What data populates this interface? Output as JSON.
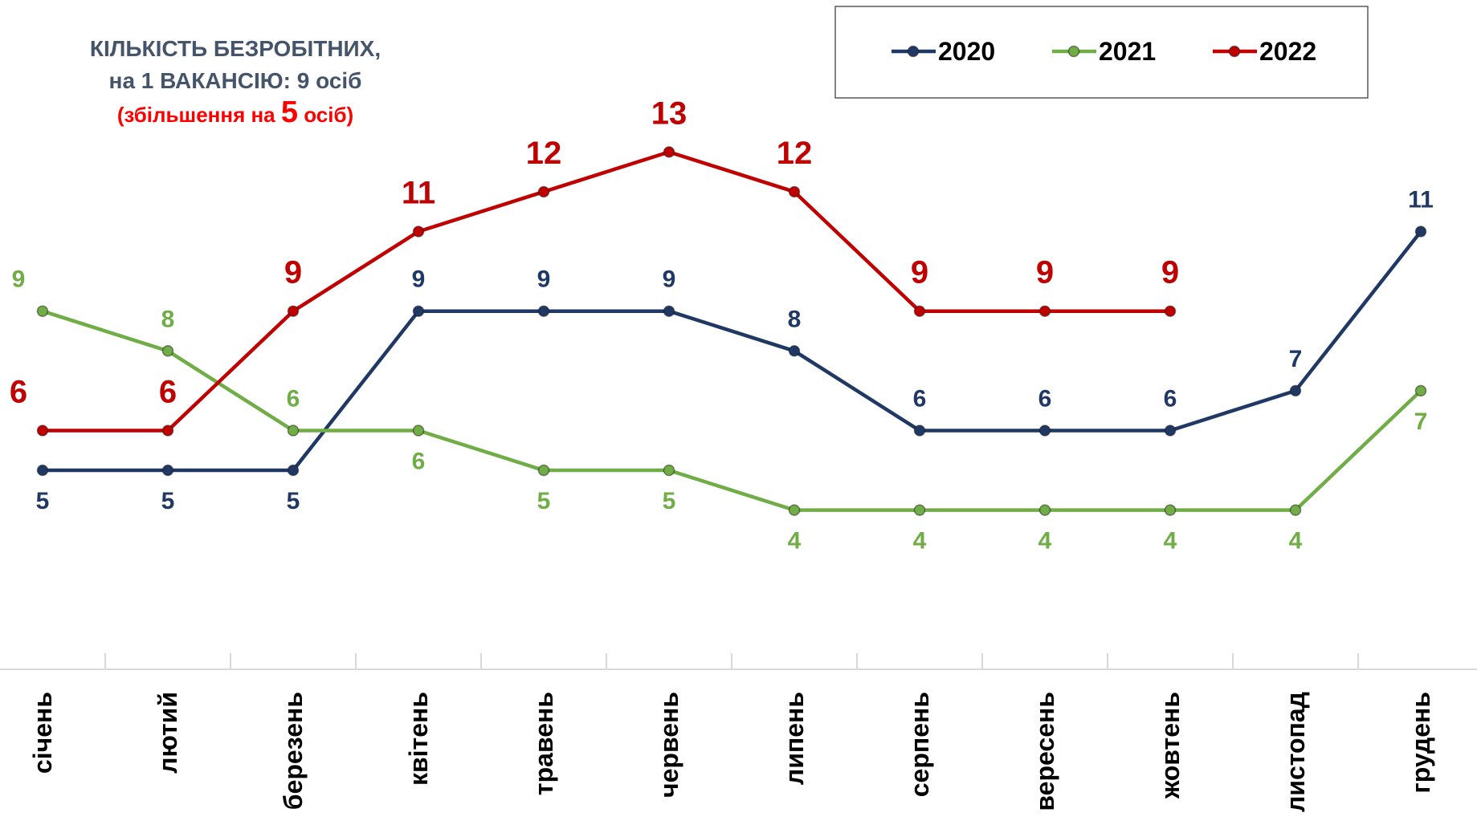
{
  "chart_data": {
    "type": "line",
    "title": [
      "КІЛЬКІСТЬ БЕЗРОБІТНИХ,",
      "на 1 ВАКАНСІЮ: 9 осіб"
    ],
    "annotation": [
      "(збільшення на ",
      "5",
      " осіб)"
    ],
    "categories": [
      "січень",
      "лютий",
      "березень",
      "квітень",
      "травень",
      "червень",
      "липень",
      "серпень",
      "вересень",
      "жовтень",
      "листопад",
      "грудень"
    ],
    "series": [
      {
        "name": "2020",
        "color": "#1f3864",
        "values": [
          5,
          5,
          5,
          9,
          9,
          9,
          8,
          6,
          6,
          6,
          7,
          11
        ]
      },
      {
        "name": "2021",
        "color": "#70ad47",
        "values": [
          9,
          8,
          6,
          6,
          5,
          5,
          4,
          4,
          4,
          4,
          4,
          7
        ]
      },
      {
        "name": "2022",
        "color": "#c00000",
        "values": [
          6,
          6,
          9,
          11,
          12,
          13,
          12,
          9,
          9,
          9,
          null,
          null
        ]
      }
    ],
    "ylim": [
      0,
      17
    ],
    "legend": "top-right"
  }
}
